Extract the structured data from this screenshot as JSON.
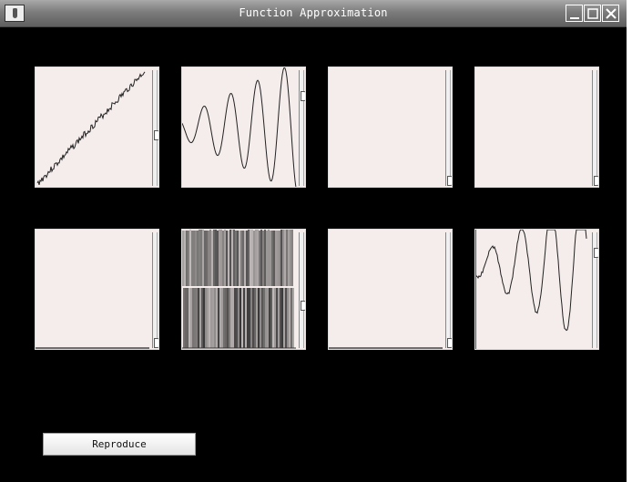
{
  "window": {
    "title": "Function Approximation",
    "icon": "java-cup-icon",
    "controls": [
      "minimize-icon",
      "maximize-icon",
      "close-icon"
    ]
  },
  "grid": {
    "rows": 2,
    "columns": 4,
    "panel_background": "#f5ecec",
    "plots": [
      {
        "content": "noisy-linear-line",
        "slider_value": 0.57
      },
      {
        "content": "sinusoid-increasing-amplitude",
        "slider_value": 0.2
      },
      {
        "content": "empty",
        "slider_value": 1.0
      },
      {
        "content": "empty",
        "slider_value": 1.0
      },
      {
        "content": "baseline",
        "slider_value": 1.0
      },
      {
        "content": "dense-vertical-bars",
        "slider_value": 0.65
      },
      {
        "content": "baseline",
        "slider_value": 1.0
      },
      {
        "content": "sinusoid-noisy",
        "slider_value": 0.15
      }
    ]
  },
  "buttons": {
    "reproduce_label": "Reproduce"
  }
}
